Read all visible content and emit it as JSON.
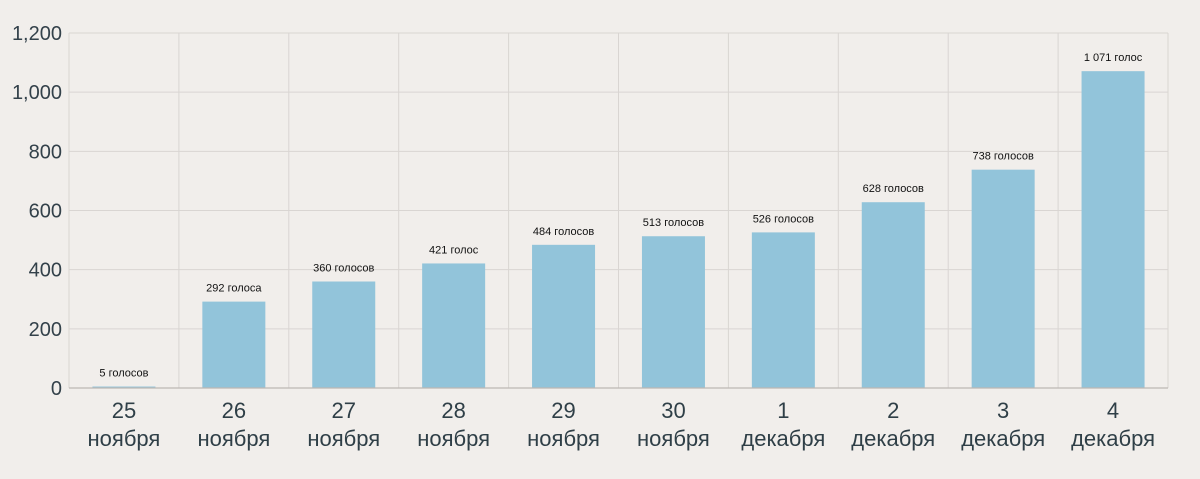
{
  "chart_data": {
    "type": "bar",
    "categories": [
      [
        "25",
        "ноября"
      ],
      [
        "26",
        "ноября"
      ],
      [
        "27",
        "ноября"
      ],
      [
        "28",
        "ноября"
      ],
      [
        "29",
        "ноября"
      ],
      [
        "30",
        "ноября"
      ],
      [
        "1",
        "декабря"
      ],
      [
        "2",
        "декабря"
      ],
      [
        "3",
        "декабря"
      ],
      [
        "4",
        "декабря"
      ]
    ],
    "values": [
      5,
      292,
      360,
      421,
      484,
      513,
      526,
      628,
      738,
      1071
    ],
    "data_labels": [
      "5 голосов",
      "292 голоса",
      "360 голосов",
      "421 голос",
      "484 голосов",
      "513 голосов",
      "526 голосов",
      "628 голосов",
      "738 голосов",
      "1 071 голос"
    ],
    "yticks": [
      0,
      200,
      400,
      600,
      800,
      1000,
      1200
    ],
    "ytick_labels": [
      "0",
      "200",
      "400",
      "600",
      "800",
      "1,000",
      "1,200"
    ],
    "ylim": [
      0,
      1200
    ],
    "grid": true,
    "title": "",
    "xlabel": "",
    "ylabel": "",
    "colors": {
      "bar": "#92c4da",
      "grid": "#d9d5d2",
      "background": "#f1eeeb"
    }
  }
}
